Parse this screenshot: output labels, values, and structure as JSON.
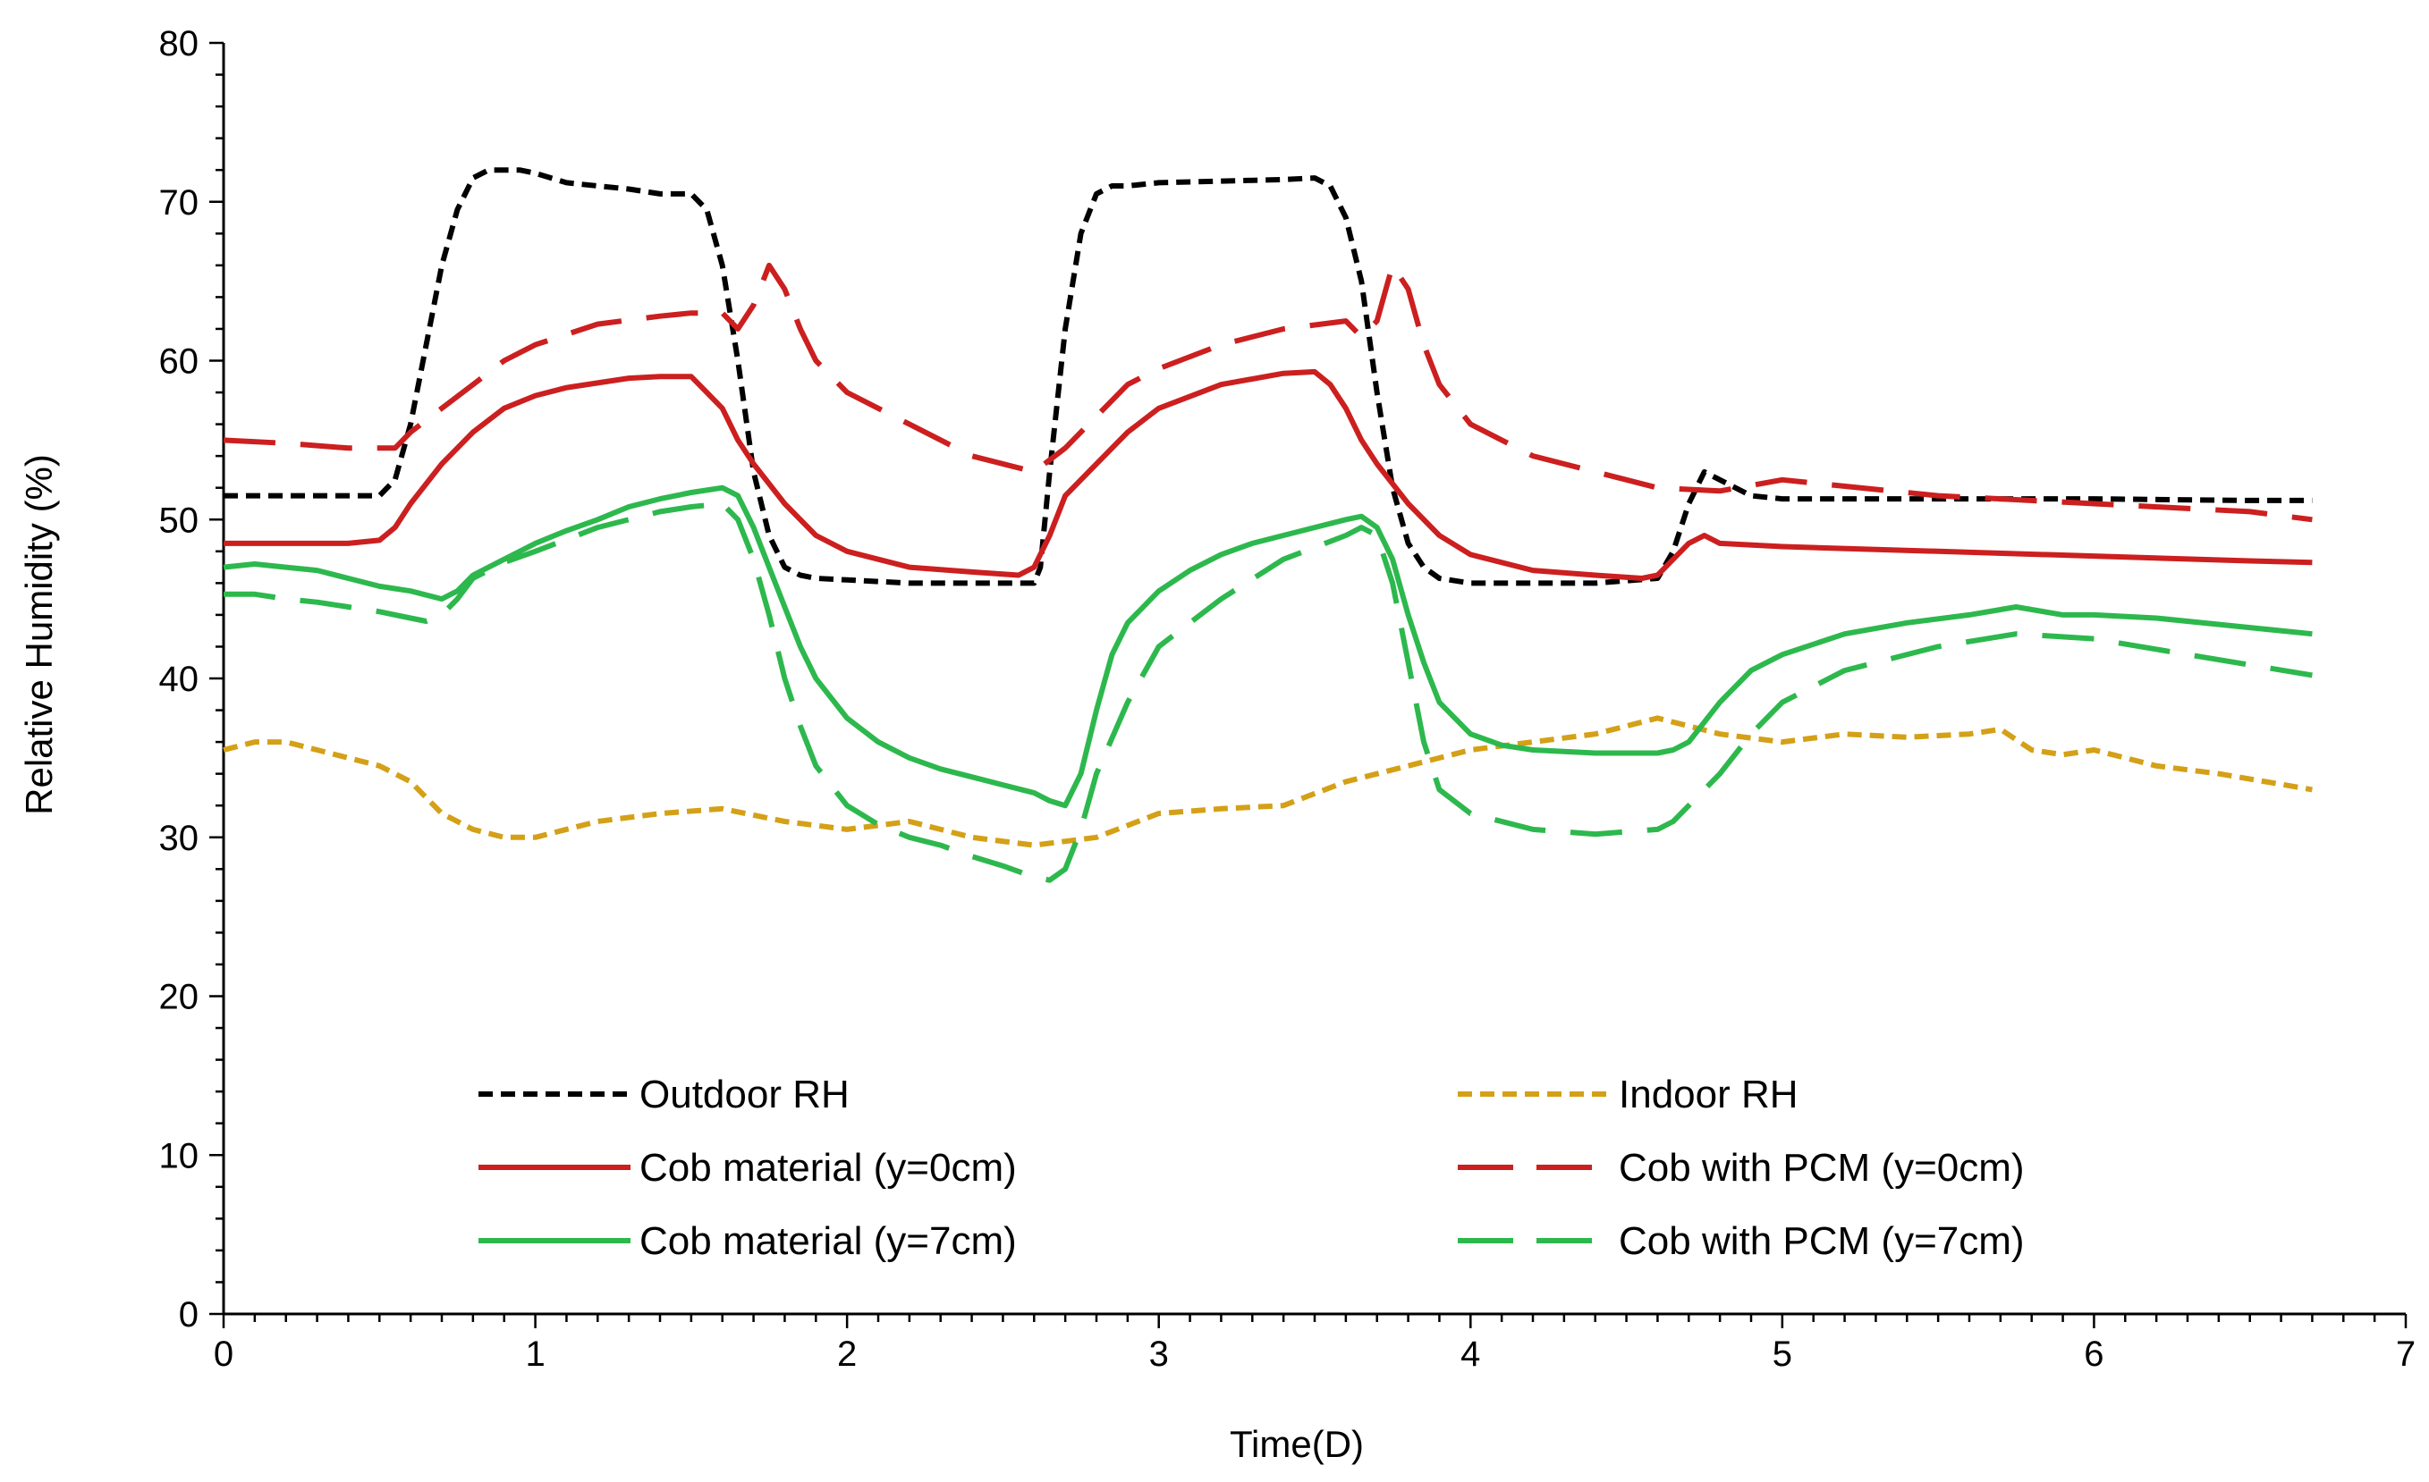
{
  "chart_data": {
    "type": "line",
    "title": "",
    "xlabel": "Time(D)",
    "ylabel": "Relative Humidity (%)",
    "xlim": [
      0,
      7
    ],
    "ylim": [
      0,
      80
    ],
    "xticks": [
      "0",
      "1",
      "2",
      "3",
      "4",
      "5",
      "6",
      "7"
    ],
    "yticks": [
      "0",
      "10",
      "20",
      "30",
      "40",
      "50",
      "60",
      "70",
      "80"
    ],
    "grid": false,
    "legend_position": "bottom",
    "series": [
      {
        "name": "Outdoor RH",
        "color": "#000000",
        "style": "short-dash",
        "x": [
          0,
          0.5,
          0.55,
          0.6,
          0.65,
          0.7,
          0.75,
          0.8,
          0.85,
          0.9,
          0.95,
          1.0,
          1.1,
          1.2,
          1.3,
          1.4,
          1.5,
          1.55,
          1.6,
          1.65,
          1.7,
          1.75,
          1.8,
          1.85,
          1.9,
          2.0,
          2.2,
          2.4,
          2.6,
          2.62,
          2.65,
          2.7,
          2.75,
          2.8,
          2.85,
          2.9,
          3.0,
          3.2,
          3.4,
          3.5,
          3.55,
          3.6,
          3.65,
          3.7,
          3.75,
          3.8,
          3.85,
          3.9,
          4.0,
          4.2,
          4.4,
          4.6,
          4.65,
          4.7,
          4.75,
          4.8,
          4.9,
          5.0,
          5.5,
          6.0,
          6.5,
          6.7
        ],
        "y": [
          51.5,
          51.5,
          52.5,
          56,
          61,
          66,
          69.5,
          71.5,
          72,
          72,
          72,
          71.8,
          71.2,
          71,
          70.8,
          70.5,
          70.5,
          69.5,
          66,
          60,
          53,
          49,
          47,
          46.5,
          46.3,
          46.2,
          46,
          46,
          46,
          47,
          53,
          62,
          68,
          70.5,
          71,
          71,
          71.2,
          71.3,
          71.4,
          71.5,
          71,
          69,
          65,
          58,
          52,
          48.5,
          47,
          46.3,
          46,
          46,
          46,
          46.3,
          48,
          51,
          53,
          52.5,
          51.5,
          51.3,
          51.3,
          51.3,
          51.2,
          51.2
        ]
      },
      {
        "name": "Indoor RH",
        "color": "#d4a017",
        "style": "short-dash",
        "x": [
          0,
          0.1,
          0.2,
          0.3,
          0.4,
          0.5,
          0.6,
          0.7,
          0.8,
          0.9,
          1.0,
          1.2,
          1.4,
          1.6,
          1.8,
          2.0,
          2.2,
          2.4,
          2.6,
          2.8,
          3.0,
          3.2,
          3.4,
          3.6,
          3.8,
          4.0,
          4.2,
          4.4,
          4.6,
          4.7,
          4.8,
          5.0,
          5.2,
          5.4,
          5.6,
          5.7,
          5.8,
          5.9,
          6.0,
          6.2,
          6.4,
          6.7
        ],
        "y": [
          35.5,
          36,
          36,
          35.5,
          35,
          34.5,
          33.5,
          31.5,
          30.5,
          30,
          30,
          31,
          31.5,
          31.8,
          31,
          30.5,
          31,
          30,
          29.5,
          30,
          31.5,
          31.8,
          32,
          33.5,
          34.5,
          35.5,
          36,
          36.5,
          37.5,
          37,
          36.5,
          36,
          36.5,
          36.3,
          36.5,
          36.8,
          35.5,
          35.2,
          35.5,
          34.5,
          34,
          33
        ]
      },
      {
        "name": "Cob material (y=0cm)",
        "color": "#cc1f1f",
        "style": "solid",
        "x": [
          0,
          0.4,
          0.5,
          0.55,
          0.6,
          0.7,
          0.8,
          0.9,
          1.0,
          1.1,
          1.2,
          1.3,
          1.4,
          1.5,
          1.55,
          1.6,
          1.65,
          1.7,
          1.8,
          1.9,
          2.0,
          2.2,
          2.4,
          2.55,
          2.6,
          2.65,
          2.7,
          2.8,
          2.9,
          3.0,
          3.2,
          3.4,
          3.5,
          3.55,
          3.6,
          3.65,
          3.7,
          3.8,
          3.9,
          4.0,
          4.2,
          4.4,
          4.55,
          4.6,
          4.65,
          4.7,
          4.75,
          4.8,
          5.0,
          5.5,
          6.0,
          6.5,
          6.7
        ],
        "y": [
          48.5,
          48.5,
          48.7,
          49.5,
          51,
          53.5,
          55.5,
          57,
          57.8,
          58.3,
          58.6,
          58.9,
          59,
          59,
          58,
          57,
          55,
          53.5,
          51,
          49,
          48,
          47,
          46.7,
          46.5,
          47,
          49,
          51.5,
          53.5,
          55.5,
          57,
          58.5,
          59.2,
          59.3,
          58.5,
          57,
          55,
          53.5,
          51,
          49,
          47.8,
          46.8,
          46.5,
          46.3,
          46.5,
          47.5,
          48.5,
          49,
          48.5,
          48.3,
          48,
          47.7,
          47.4,
          47.3
        ]
      },
      {
        "name": "Cob with PCM (y=0cm)",
        "color": "#cc1f1f",
        "style": "long-dash",
        "x": [
          0,
          0.2,
          0.4,
          0.55,
          0.6,
          0.7,
          0.8,
          0.9,
          1.0,
          1.2,
          1.4,
          1.5,
          1.6,
          1.65,
          1.7,
          1.75,
          1.8,
          1.85,
          1.9,
          2.0,
          2.2,
          2.4,
          2.6,
          2.7,
          2.8,
          2.9,
          3.0,
          3.2,
          3.4,
          3.6,
          3.65,
          3.7,
          3.75,
          3.8,
          3.85,
          3.9,
          4.0,
          4.2,
          4.4,
          4.6,
          4.8,
          5.0,
          5.5,
          6.0,
          6.5,
          6.7
        ],
        "y": [
          55,
          54.8,
          54.5,
          54.5,
          55.5,
          57,
          58.5,
          60,
          61,
          62.3,
          62.8,
          63,
          63,
          62,
          63.5,
          66,
          64.5,
          62,
          60,
          58,
          56,
          54,
          53,
          54.5,
          56.5,
          58.5,
          59.5,
          61,
          62,
          62.5,
          61.5,
          62.5,
          66,
          64.5,
          61,
          58.5,
          56,
          54,
          53,
          52,
          51.8,
          52.5,
          51.5,
          51,
          50.5,
          50
        ]
      },
      {
        "name": "Cob material (y=7cm)",
        "color": "#2db84d",
        "style": "solid",
        "x": [
          0,
          0.1,
          0.2,
          0.3,
          0.4,
          0.5,
          0.6,
          0.7,
          0.75,
          0.8,
          0.9,
          1.0,
          1.1,
          1.2,
          1.3,
          1.4,
          1.5,
          1.6,
          1.65,
          1.7,
          1.75,
          1.8,
          1.85,
          1.9,
          2.0,
          2.1,
          2.2,
          2.3,
          2.4,
          2.5,
          2.6,
          2.65,
          2.7,
          2.75,
          2.8,
          2.85,
          2.9,
          3.0,
          3.1,
          3.2,
          3.3,
          3.4,
          3.5,
          3.6,
          3.65,
          3.7,
          3.75,
          3.8,
          3.85,
          3.9,
          4.0,
          4.1,
          4.2,
          4.4,
          4.6,
          4.65,
          4.7,
          4.8,
          4.9,
          5.0,
          5.2,
          5.4,
          5.6,
          5.75,
          5.9,
          6.0,
          6.2,
          6.5,
          6.7
        ],
        "y": [
          47,
          47.2,
          47,
          46.8,
          46.3,
          45.8,
          45.5,
          45,
          45.5,
          46.5,
          47.5,
          48.5,
          49.3,
          50,
          50.8,
          51.3,
          51.7,
          52,
          51.5,
          49.5,
          47,
          44.5,
          42,
          40,
          37.5,
          36,
          35,
          34.3,
          33.8,
          33.3,
          32.8,
          32.3,
          32,
          34,
          38,
          41.5,
          43.5,
          45.5,
          46.8,
          47.8,
          48.5,
          49,
          49.5,
          50,
          50.2,
          49.5,
          47.5,
          44,
          41,
          38.5,
          36.5,
          35.8,
          35.5,
          35.3,
          35.3,
          35.5,
          36,
          38.5,
          40.5,
          41.5,
          42.8,
          43.5,
          44,
          44.5,
          44,
          44,
          43.8,
          43.2,
          42.8
        ]
      },
      {
        "name": "Cob with PCM (y=7cm)",
        "color": "#2db84d",
        "style": "long-dash",
        "x": [
          0,
          0.1,
          0.2,
          0.3,
          0.4,
          0.5,
          0.6,
          0.65,
          0.7,
          0.75,
          0.8,
          0.9,
          1.0,
          1.2,
          1.4,
          1.5,
          1.6,
          1.65,
          1.7,
          1.75,
          1.8,
          1.85,
          1.9,
          2.0,
          2.1,
          2.2,
          2.3,
          2.4,
          2.5,
          2.6,
          2.65,
          2.7,
          2.75,
          2.8,
          2.9,
          3.0,
          3.2,
          3.4,
          3.6,
          3.65,
          3.7,
          3.75,
          3.8,
          3.85,
          3.9,
          4.0,
          4.2,
          4.4,
          4.6,
          4.65,
          4.7,
          4.8,
          4.9,
          5.0,
          5.2,
          5.5,
          5.75,
          6.0,
          6.3,
          6.7
        ],
        "y": [
          45.3,
          45.3,
          45,
          44.8,
          44.5,
          44.2,
          43.8,
          43.6,
          44,
          45,
          46.3,
          47.3,
          48,
          49.5,
          50.5,
          50.8,
          51,
          50,
          47.5,
          44,
          40,
          37,
          34.5,
          32,
          30.8,
          30,
          29.5,
          28.8,
          28.2,
          27.5,
          27.3,
          28,
          30.5,
          34,
          38.5,
          42,
          45,
          47.5,
          49,
          49.5,
          49,
          46,
          41,
          36,
          33,
          31.5,
          30.5,
          30.2,
          30.5,
          31,
          32,
          34,
          36.5,
          38.5,
          40.5,
          42,
          42.8,
          42.5,
          41.5,
          40.2
        ]
      }
    ]
  }
}
